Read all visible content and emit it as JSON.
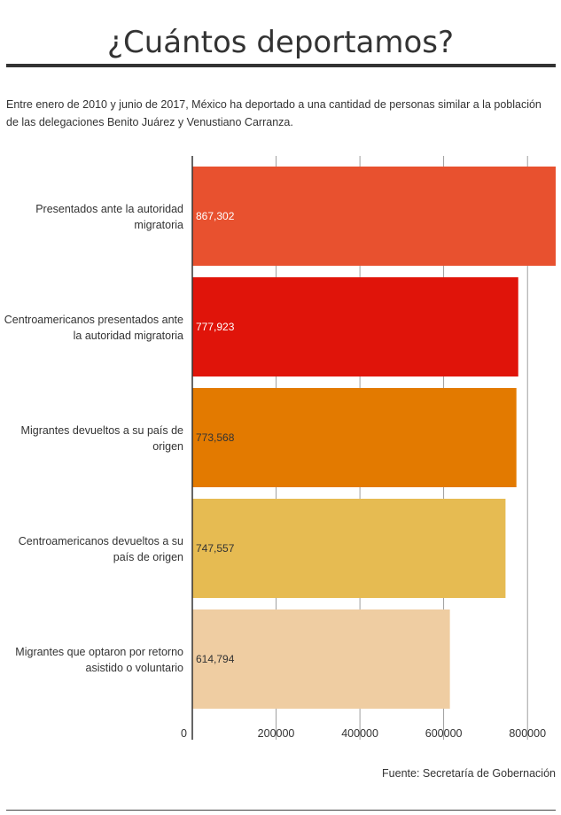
{
  "title": "¿Cuántos deportamos?",
  "subtitle": "Entre enero de 2010 y junio de 2017, México ha deportado a una cantidad de personas similar a la población de las delegaciones Benito Juárez y Venustiano Carranza.",
  "source": "Fuente: Secretaría de Gobernación",
  "chart_data": {
    "type": "bar",
    "orientation": "horizontal",
    "title": "",
    "xlabel": "",
    "ylabel": "",
    "categories": [
      "Presentados ante la autoridad migratoria",
      "Centroamericanos presentados ante la autoridad migratoria",
      "Migrantes devueltos a su país de origen",
      "Centroamericanos devueltos a su país de origen",
      "Migrantes que optaron por retorno asistido o voluntario"
    ],
    "category_lines": [
      [
        "Presentados ante la autoridad",
        "migratoria"
      ],
      [
        "Centroamericanos presentados ante",
        "la autoridad migratoria"
      ],
      [
        "Migrantes devueltos a su país de",
        "origen"
      ],
      [
        "Centroamericanos devueltos a su",
        "país de origen"
      ],
      [
        "Migrantes que optaron por retorno",
        "asistido o voluntario"
      ]
    ],
    "values": [
      867302,
      777923,
      773568,
      747557,
      614794
    ],
    "value_labels": [
      "867,302",
      "777,923",
      "773,568",
      "747,557",
      "614,794"
    ],
    "colors": [
      "#e8512f",
      "#e0140a",
      "#e37a00",
      "#e6bb52",
      "#efcda2"
    ],
    "label_colors": [
      "#ffffff",
      "#ffffff",
      "#333333",
      "#333333",
      "#333333"
    ],
    "xticks": [
      0,
      200000,
      400000,
      600000,
      800000
    ],
    "xtick_labels": [
      "0",
      "200000",
      "400000",
      "600000",
      "800000"
    ],
    "xlim": [
      0,
      867302
    ],
    "grid": true,
    "legend": "none"
  }
}
